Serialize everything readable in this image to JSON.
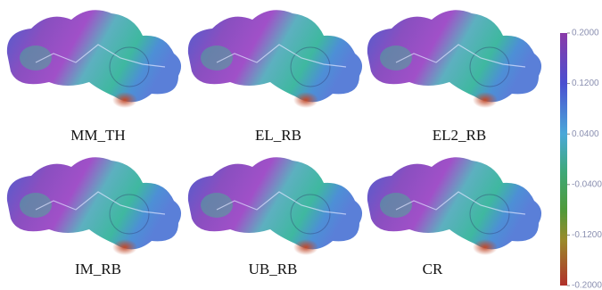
{
  "panels": [
    {
      "label": "MM_TH"
    },
    {
      "label": "EL_RB"
    },
    {
      "label": "EL2_RB"
    },
    {
      "label": "IM_RB"
    },
    {
      "label": "UB_RB"
    },
    {
      "label": "CR"
    }
  ],
  "colorbar": {
    "lim": [
      -0.2,
      0.2
    ],
    "ticks": [
      {
        "value": 0.2,
        "label": "0.2000"
      },
      {
        "value": 0.12,
        "label": "0.1200"
      },
      {
        "value": 0.04,
        "label": "0.0400"
      },
      {
        "value": -0.04,
        "label": "-0.0400"
      },
      {
        "value": -0.12,
        "label": "-0.1200"
      },
      {
        "value": -0.2,
        "label": "-0.2000"
      }
    ]
  }
}
